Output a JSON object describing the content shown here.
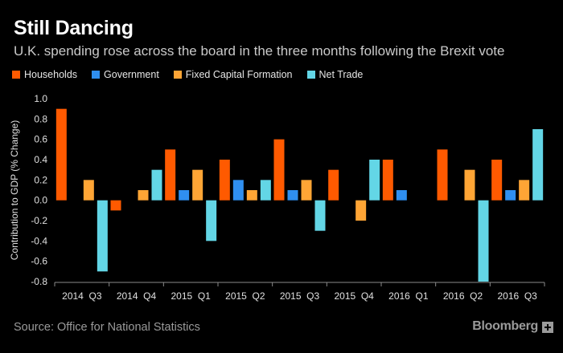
{
  "header": {
    "title": "Still Dancing",
    "subtitle": "U.K. spending rose across the board in the three months following the Brexit vote"
  },
  "footer": {
    "source": "Source: Office for National Statistics",
    "brand": "Bloomberg",
    "brand_icon": "bloomberg-plus-icon"
  },
  "colors": {
    "background": "#000000",
    "households": "#ff5a00",
    "government": "#2f8ff0",
    "fixed_capital": "#ffa535",
    "net_trade": "#63d6e6",
    "axis": "#8a8a8a"
  },
  "chart_data": {
    "type": "bar",
    "title": "Still Dancing",
    "subtitle": "U.K. spending rose across the board in the three months following the Brexit vote",
    "xlabel": "",
    "ylabel": "Contribution to GDP (% Change)",
    "ylim": [
      -0.8,
      1.0
    ],
    "yticks": [
      "1.0",
      "0.8",
      "0.6",
      "0.4",
      "0.2",
      "0.0",
      "-0.2",
      "-0.4",
      "-0.6",
      "-0.8"
    ],
    "grid": false,
    "legend_position": "top-left",
    "categories": [
      "2014  Q3",
      "2014  Q4",
      "2015  Q1",
      "2015  Q2",
      "2015  Q3",
      "2015  Q4",
      "2016  Q1",
      "2016  Q2",
      "2016  Q3"
    ],
    "series": [
      {
        "name": "Households",
        "color": "#ff5a00",
        "values": [
          0.9,
          -0.1,
          0.5,
          0.4,
          0.6,
          0.3,
          0.4,
          0.5,
          0.4
        ]
      },
      {
        "name": "Government",
        "color": "#2f8ff0",
        "values": [
          0.0,
          0.0,
          0.1,
          0.2,
          0.1,
          0.0,
          0.1,
          0.0,
          0.1
        ]
      },
      {
        "name": "Fixed Capital Formation",
        "color": "#ffa535",
        "values": [
          0.2,
          0.1,
          0.3,
          0.1,
          0.2,
          -0.2,
          0.0,
          0.3,
          0.2
        ]
      },
      {
        "name": "Net Trade",
        "color": "#63d6e6",
        "values": [
          -0.7,
          0.3,
          -0.4,
          0.2,
          -0.3,
          0.4,
          0.0,
          -0.8,
          0.7
        ]
      }
    ]
  }
}
